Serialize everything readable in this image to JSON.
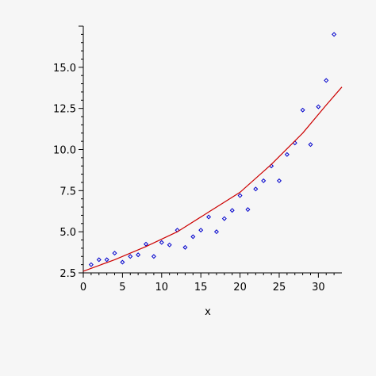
{
  "chart_data": {
    "type": "scatter",
    "title": "",
    "xlabel": "x",
    "ylabel": "",
    "xlim": [
      0,
      33
    ],
    "ylim": [
      2.5,
      17.5
    ],
    "x_ticks": [
      0,
      5,
      10,
      15,
      20,
      25,
      30
    ],
    "x_tick_labels": [
      "0",
      "5",
      "10",
      "15",
      "20",
      "25",
      "30"
    ],
    "y_ticks": [
      2.5,
      5.0,
      7.5,
      10.0,
      12.5,
      15.0
    ],
    "y_tick_labels": [
      "2.5",
      "5.0",
      "7.5",
      "10.0",
      "12.5",
      "15.0"
    ],
    "grid": false,
    "series": [
      {
        "type": "scatter",
        "color": "#0000cc",
        "x": [
          1,
          2,
          3,
          4,
          5,
          6,
          7,
          8,
          9,
          10,
          11,
          12,
          13,
          14,
          15,
          16,
          17,
          18,
          19,
          20,
          21,
          22,
          23,
          24,
          25,
          26,
          27,
          28,
          29,
          30,
          31,
          32
        ],
        "y": [
          3.0,
          3.3,
          3.3,
          3.7,
          3.15,
          3.5,
          3.6,
          4.25,
          3.5,
          4.35,
          4.2,
          5.1,
          4.05,
          4.7,
          5.1,
          5.9,
          5.0,
          5.8,
          6.3,
          7.2,
          6.35,
          7.6,
          8.1,
          9.0,
          8.1,
          9.7,
          10.4,
          12.4,
          10.3,
          12.6,
          14.2,
          17.0
        ]
      },
      {
        "type": "line",
        "color": "#cc0000",
        "x": [
          0,
          4,
          8,
          12,
          16,
          20,
          24,
          28,
          31,
          33
        ],
        "y": [
          2.6,
          3.3,
          4.1,
          5.0,
          6.2,
          7.4,
          9.1,
          11.0,
          12.7,
          13.8
        ]
      }
    ]
  }
}
